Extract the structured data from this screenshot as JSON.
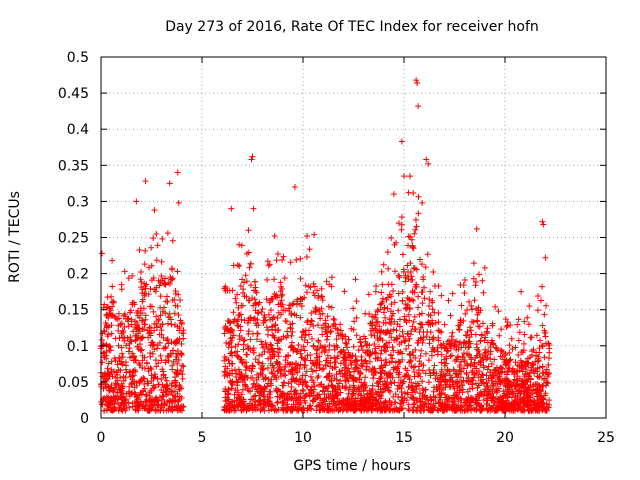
{
  "chart_data": {
    "type": "scatter",
    "title": "Day 273 of 2016, Rate Of TEC Index for receiver hofn",
    "xlabel": "GPS time / hours",
    "ylabel": "ROTI / TECUs",
    "xlim": [
      0,
      25
    ],
    "ylim": [
      0,
      0.5
    ],
    "xticks": [
      0,
      5,
      10,
      15,
      20,
      25
    ],
    "xtick_labels": [
      "0",
      "5",
      "10",
      "15",
      "20",
      "25"
    ],
    "yticks": [
      0,
      0.05,
      0.1,
      0.15,
      0.2,
      0.25,
      0.3,
      0.35,
      0.4,
      0.45,
      0.5
    ],
    "ytick_labels": [
      "0",
      "0.05",
      "0.1",
      "0.15",
      "0.2",
      "0.25",
      "0.3",
      "0.35",
      "0.4",
      "0.45",
      "0.5"
    ],
    "grid": true,
    "marker": "+",
    "color": "#ff0000",
    "data_segments": [
      {
        "start": 0.0,
        "end": 4.1
      },
      {
        "start": 6.1,
        "end": 22.2
      }
    ],
    "envelope": [
      [
        0.0,
        0.12
      ],
      [
        0.5,
        0.17
      ],
      [
        1.0,
        0.14
      ],
      [
        1.5,
        0.16
      ],
      [
        2.0,
        0.22
      ],
      [
        2.5,
        0.2
      ],
      [
        3.0,
        0.19
      ],
      [
        3.5,
        0.22
      ],
      [
        4.0,
        0.14
      ],
      [
        6.2,
        0.13
      ],
      [
        6.6,
        0.16
      ],
      [
        7.0,
        0.2
      ],
      [
        7.5,
        0.22
      ],
      [
        8.0,
        0.15
      ],
      [
        8.5,
        0.17
      ],
      [
        9.0,
        0.2
      ],
      [
        9.5,
        0.16
      ],
      [
        10.0,
        0.18
      ],
      [
        10.5,
        0.2
      ],
      [
        11.0,
        0.15
      ],
      [
        11.5,
        0.14
      ],
      [
        12.0,
        0.12
      ],
      [
        12.5,
        0.1
      ],
      [
        13.0,
        0.12
      ],
      [
        13.5,
        0.14
      ],
      [
        14.0,
        0.17
      ],
      [
        14.5,
        0.2
      ],
      [
        15.0,
        0.24
      ],
      [
        15.5,
        0.27
      ],
      [
        16.0,
        0.22
      ],
      [
        16.5,
        0.15
      ],
      [
        17.0,
        0.1
      ],
      [
        17.5,
        0.12
      ],
      [
        18.0,
        0.15
      ],
      [
        18.5,
        0.18
      ],
      [
        19.0,
        0.13
      ],
      [
        19.5,
        0.1
      ],
      [
        20.0,
        0.09
      ],
      [
        20.5,
        0.08
      ],
      [
        21.0,
        0.08
      ],
      [
        21.5,
        0.1
      ],
      [
        22.0,
        0.14
      ],
      [
        22.2,
        0.12
      ]
    ],
    "outliers": [
      {
        "x": 0.05,
        "y": 0.228
      },
      {
        "x": 0.55,
        "y": 0.218
      },
      {
        "x": 1.75,
        "y": 0.3
      },
      {
        "x": 2.2,
        "y": 0.328
      },
      {
        "x": 2.65,
        "y": 0.288
      },
      {
        "x": 3.4,
        "y": 0.325
      },
      {
        "x": 3.8,
        "y": 0.34
      },
      {
        "x": 3.85,
        "y": 0.298
      },
      {
        "x": 6.45,
        "y": 0.29
      },
      {
        "x": 7.3,
        "y": 0.26
      },
      {
        "x": 7.45,
        "y": 0.358
      },
      {
        "x": 7.5,
        "y": 0.362
      },
      {
        "x": 7.55,
        "y": 0.29
      },
      {
        "x": 8.6,
        "y": 0.252
      },
      {
        "x": 9.6,
        "y": 0.32
      },
      {
        "x": 10.2,
        "y": 0.252
      },
      {
        "x": 12.6,
        "y": 0.192
      },
      {
        "x": 14.5,
        "y": 0.31
      },
      {
        "x": 14.9,
        "y": 0.383
      },
      {
        "x": 15.0,
        "y": 0.335
      },
      {
        "x": 15.3,
        "y": 0.335
      },
      {
        "x": 15.6,
        "y": 0.468
      },
      {
        "x": 15.65,
        "y": 0.464
      },
      {
        "x": 15.7,
        "y": 0.432
      },
      {
        "x": 15.9,
        "y": 0.298
      },
      {
        "x": 16.1,
        "y": 0.358
      },
      {
        "x": 16.2,
        "y": 0.352
      },
      {
        "x": 18.6,
        "y": 0.262
      },
      {
        "x": 19.0,
        "y": 0.208
      },
      {
        "x": 20.8,
        "y": 0.175
      },
      {
        "x": 21.2,
        "y": 0.155
      },
      {
        "x": 21.85,
        "y": 0.272
      },
      {
        "x": 21.9,
        "y": 0.268
      },
      {
        "x": 22.0,
        "y": 0.222
      }
    ]
  }
}
